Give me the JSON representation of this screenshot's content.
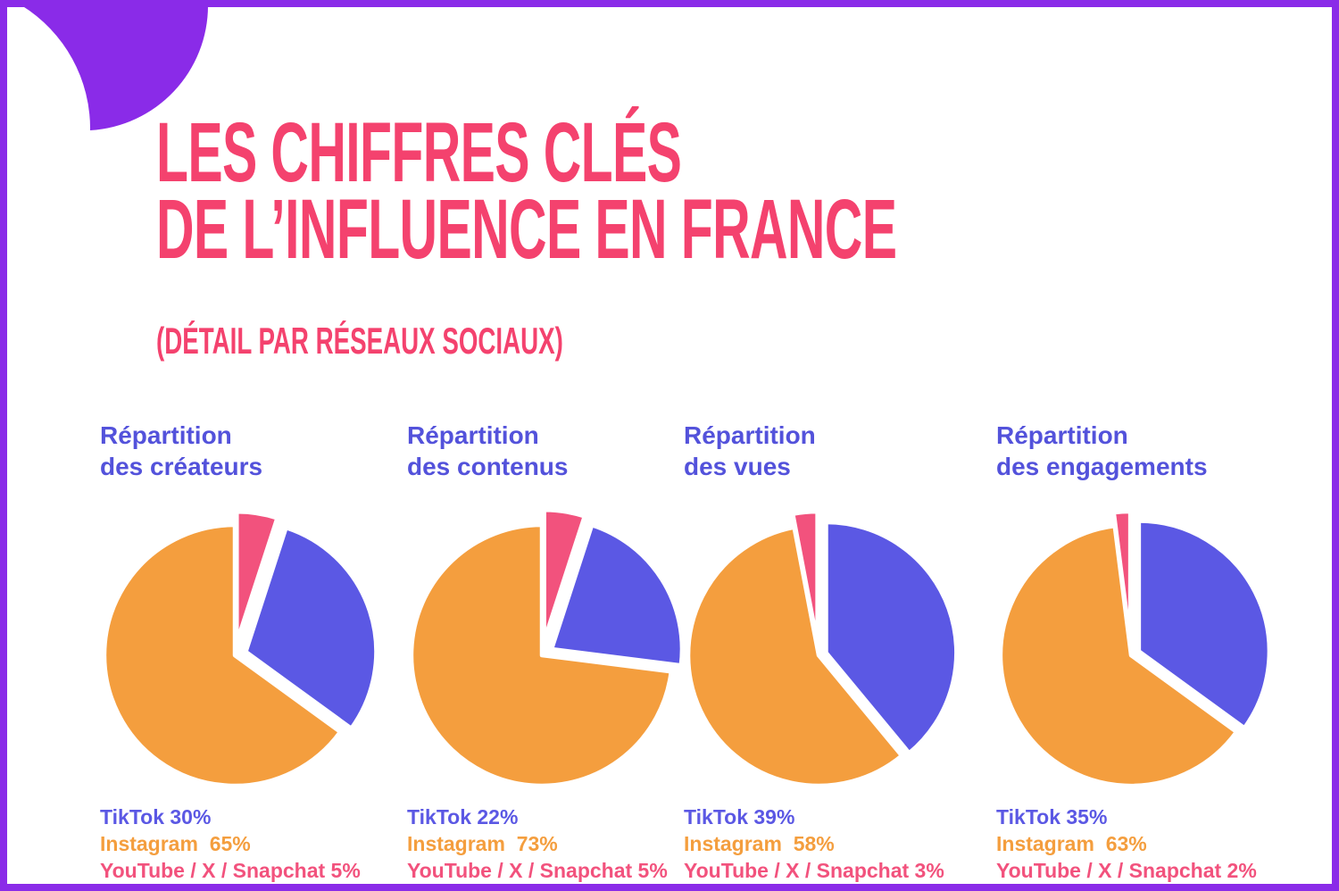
{
  "page": {
    "background": "#ffffff",
    "border_color": "#8A2BE8",
    "accent_pink": "#F4426E",
    "accent_blue": "#5352DB",
    "accent_orange": "#F49E3E",
    "slice_pink": "#F2527D",
    "slice_blue": "#5B58E4",
    "slice_orange": "#F49E3E"
  },
  "header": {
    "title_line1": "LES CHIFFRES CLÉS",
    "title_line2": "DE L’INFLUENCE EN FRANCE",
    "subtitle": "(DÉTAIL PAR RÉSEAUX SOCIAUX)"
  },
  "chart_data": [
    {
      "type": "pie",
      "title": "Répartition des créateurs",
      "title_line1": "Répartition",
      "title_line2": "des créateurs",
      "slices": [
        {
          "label": "YouTube / X / Snapchat",
          "value": 5,
          "color": "#F2527D",
          "explode": 15
        },
        {
          "label": "TikTok",
          "value": 30,
          "color": "#5B58E4",
          "explode": 13
        },
        {
          "label": "Instagram",
          "value": 65,
          "color": "#F49E3E",
          "explode": 0
        }
      ],
      "legend": [
        {
          "text": "TikTok 30%",
          "color": "#5B58E4"
        },
        {
          "text": "Instagram  65%",
          "color": "#F49E3E"
        },
        {
          "text": "YouTube / X / Snapchat 5%",
          "color": "#F2527D"
        }
      ]
    },
    {
      "type": "pie",
      "title": "Répartition des contenus",
      "title_line1": "Répartition",
      "title_line2": "des contenus",
      "slices": [
        {
          "label": "YouTube / X / Snapchat",
          "value": 5,
          "color": "#F2527D",
          "explode": 17
        },
        {
          "label": "TikTok",
          "value": 22,
          "color": "#5B58E4",
          "explode": 13
        },
        {
          "label": "Instagram",
          "value": 73,
          "color": "#F49E3E",
          "explode": 0
        }
      ],
      "legend": [
        {
          "text": "TikTok 22%",
          "color": "#5B58E4"
        },
        {
          "text": "Instagram  73%",
          "color": "#F49E3E"
        },
        {
          "text": "YouTube / X / Snapchat 5%",
          "color": "#F2527D"
        }
      ]
    },
    {
      "type": "pie",
      "title": "Répartition des vues",
      "title_line1": "Répartition",
      "title_line2": "des vues",
      "slices": [
        {
          "label": "TikTok",
          "value": 39,
          "color": "#5B58E4",
          "explode": 9
        },
        {
          "label": "Instagram",
          "value": 58,
          "color": "#F49E3E",
          "explode": 0
        },
        {
          "label": "YouTube / X / Snapchat",
          "value": 3,
          "color": "#F2527D",
          "explode": 15
        }
      ],
      "legend": [
        {
          "text": "TikTok 39%",
          "color": "#5B58E4"
        },
        {
          "text": "Instagram  58%",
          "color": "#F49E3E"
        },
        {
          "text": "YouTube / X / Snapchat 3%",
          "color": "#F2527D"
        }
      ]
    },
    {
      "type": "pie",
      "title": "Répartition des engagements",
      "title_line1": "Répartition",
      "title_line2": "des engagements",
      "slices": [
        {
          "label": "TikTok",
          "value": 35,
          "color": "#5B58E4",
          "explode": 10
        },
        {
          "label": "Instagram",
          "value": 63,
          "color": "#F49E3E",
          "explode": 0
        },
        {
          "label": "YouTube / X / Snapchat",
          "value": 2,
          "color": "#F2527D",
          "explode": 15
        }
      ],
      "legend": [
        {
          "text": "TikTok 35%",
          "color": "#5B58E4"
        },
        {
          "text": "Instagram  63%",
          "color": "#F49E3E"
        },
        {
          "text": "YouTube / X / Snapchat 2%",
          "color": "#F2527D"
        }
      ]
    }
  ]
}
